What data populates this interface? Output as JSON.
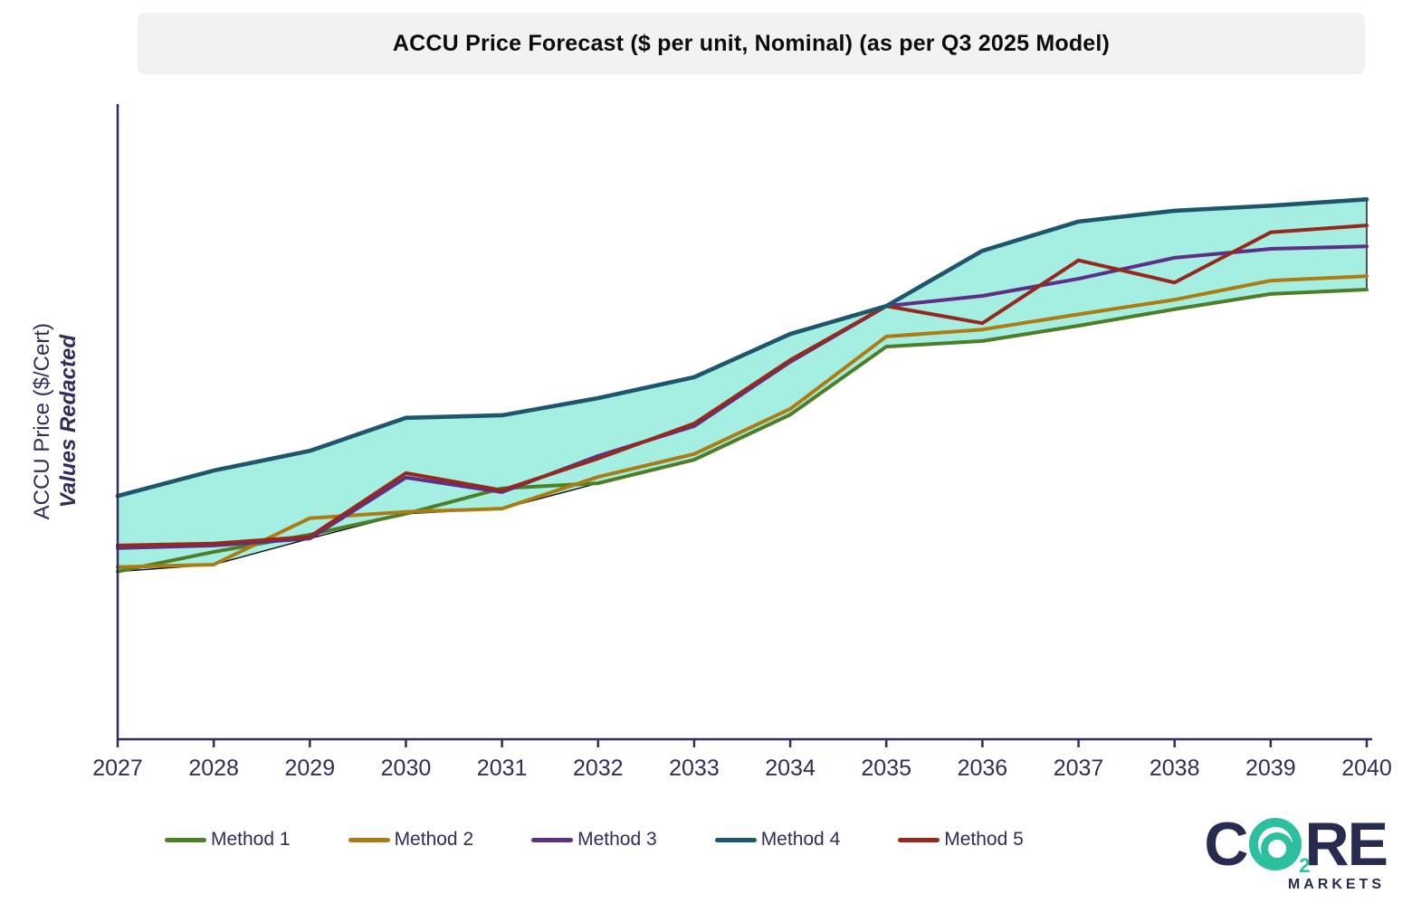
{
  "title": "ACCU Price Forecast ($ per unit, Nominal) (as per Q3 2025 Model)",
  "y_axis": {
    "label": "ACCU Price ($/Cert)",
    "annotation": "Values Redacted",
    "values_redacted": true
  },
  "colors": {
    "axis": "#2e2d5e",
    "tick_label": "#2e2d5e",
    "band_fill": "#a5efe2",
    "band_outline": "#101010",
    "title_bg": "#f2f1f3",
    "logo_navy": "#272b4f",
    "logo_green": "#2cc0a1"
  },
  "chart_data": {
    "type": "line",
    "title": "ACCU Price Forecast ($ per unit, Nominal) (as per Q3 2025 Model)",
    "xlabel": "",
    "ylabel": "ACCU Price ($/Cert)",
    "note": "Y-axis values redacted in source; series values are relative index (0 = axis bottom, 100 = axis top) estimated from plot positions",
    "x": [
      2027,
      2028,
      2029,
      2030,
      2031,
      2032,
      2033,
      2034,
      2035,
      2036,
      2037,
      2038,
      2039,
      2040
    ],
    "ylim": [
      0,
      100
    ],
    "grid": false,
    "legend_position": "bottom",
    "band": {
      "kind": "min-max envelope across all series",
      "fill": "#a5efe2",
      "outline": "#101010"
    },
    "series": [
      {
        "name": "Method 1",
        "color": "#4e7e28",
        "values": [
          26.4,
          29.5,
          32.2,
          35.5,
          39.5,
          40.3,
          44.0,
          51.1,
          61.8,
          62.7,
          65.1,
          67.7,
          70.1,
          70.8
        ]
      },
      {
        "name": "Method 2",
        "color": "#ad7b14",
        "values": [
          27.1,
          27.5,
          34.8,
          35.8,
          36.3,
          41.3,
          44.9,
          52.0,
          63.4,
          64.5,
          66.9,
          69.2,
          72.2,
          72.9
        ]
      },
      {
        "name": "Method 3",
        "color": "#5e2f86",
        "values": [
          30.1,
          30.5,
          31.6,
          41.2,
          38.9,
          44.6,
          49.3,
          59.4,
          68.2,
          69.8,
          72.5,
          75.8,
          77.2,
          77.6
        ]
      },
      {
        "name": "Method 4",
        "color": "#1e566e",
        "values": [
          38.3,
          42.3,
          45.4,
          50.6,
          51.0,
          53.7,
          57.0,
          63.8,
          68.2,
          76.9,
          81.5,
          83.2,
          84.0,
          85.0
        ]
      },
      {
        "name": "Method 5",
        "color": "#96291d",
        "values": [
          30.5,
          30.8,
          31.9,
          41.9,
          39.2,
          44.2,
          49.7,
          59.7,
          68.2,
          65.5,
          75.4,
          71.9,
          79.8,
          80.9
        ]
      }
    ]
  },
  "legend": {
    "items": [
      {
        "label": "Method 1",
        "color": "#4e7e28"
      },
      {
        "label": "Method 2",
        "color": "#ad7b14"
      },
      {
        "label": "Method 3",
        "color": "#5e2f86"
      },
      {
        "label": "Method 4",
        "color": "#1e566e"
      },
      {
        "label": "Method 5",
        "color": "#96291d"
      }
    ]
  },
  "logo": {
    "part_c": "C",
    "subscript": "2",
    "part_re": "RE",
    "subtitle": "MARKETS"
  }
}
